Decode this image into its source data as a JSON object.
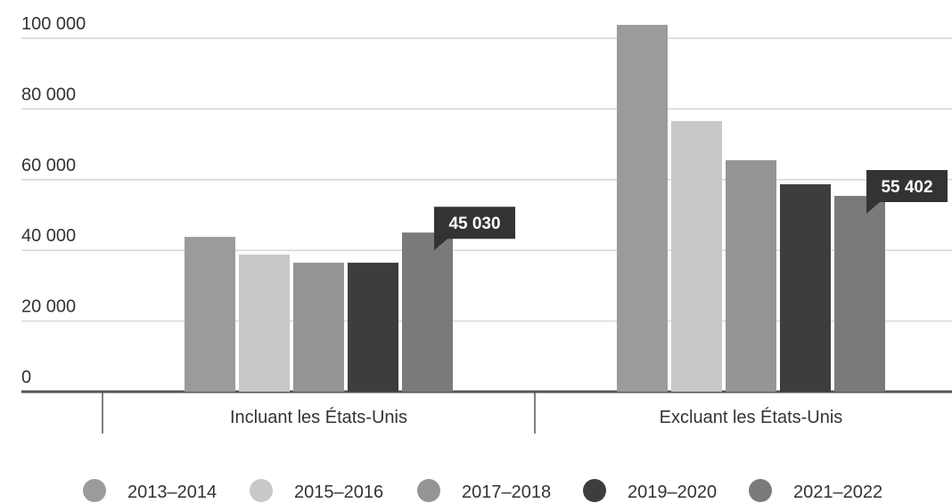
{
  "chart_data": {
    "type": "bar",
    "categories": [
      "Incluant les États-Unis",
      "Excluant les États-Unis"
    ],
    "series": [
      {
        "name": "2013–2014",
        "color": "#9b9b9b",
        "values": [
          43800,
          103800
        ]
      },
      {
        "name": "2015–2016",
        "color": "#c8c8c8",
        "values": [
          38800,
          76600
        ]
      },
      {
        "name": "2017–2018",
        "color": "#959595",
        "values": [
          36500,
          65500
        ]
      },
      {
        "name": "2019–2020",
        "color": "#3d3d3d",
        "values": [
          36500,
          58700
        ]
      },
      {
        "name": "2021–2022",
        "color": "#7a7a7a",
        "values": [
          45030,
          55402
        ],
        "value_labels": [
          "45 030",
          "55 402"
        ]
      }
    ],
    "ylim": [
      0,
      100000
    ],
    "yticks": [
      0,
      {
        "value": 20000,
        "label": "20 000"
      },
      {
        "value": 40000,
        "label": "40 000"
      },
      {
        "value": 60000,
        "label": "60 000"
      },
      {
        "value": 80000,
        "label": "80 000"
      },
      {
        "value": 100000,
        "label": "100 000"
      }
    ],
    "grid": true,
    "legend": "bottom"
  }
}
